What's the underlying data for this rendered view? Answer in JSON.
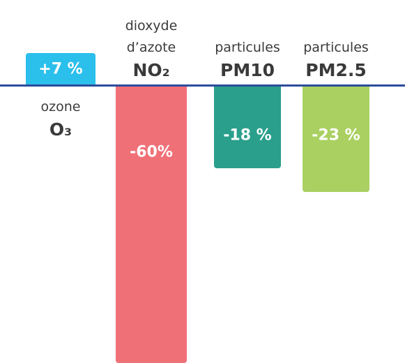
{
  "chart_data": {
    "type": "bar",
    "categories": [
      "O₃",
      "NO₂",
      "PM10",
      "PM2.5"
    ],
    "category_descriptions": [
      "ozone",
      "dioxyde d’azote",
      "particules",
      "particules"
    ],
    "values": [
      7,
      -60,
      -18,
      -23
    ],
    "value_labels": [
      "+7 %",
      "-60%",
      "-18 %",
      "-23 %"
    ],
    "colors": [
      "#2bbfec",
      "#f07078",
      "#2a9f8b",
      "#a9d061"
    ]
  }
}
